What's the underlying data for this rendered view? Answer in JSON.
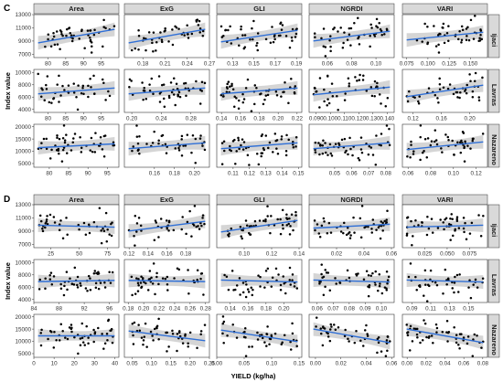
{
  "chart_data": [
    {
      "label": "C",
      "type": "scatter",
      "ylabel": "Index value",
      "xlabel": "",
      "cols": [
        {
          "name": "Area",
          "xlim_by_row": [
            [
              76,
              100
            ],
            [
              76,
              100
            ],
            [
              76,
              98
            ]
          ],
          "xticks_by_row": [
            [
              "80",
              "85",
              "90",
              "95"
            ],
            [
              "80",
              "85",
              "90",
              "95"
            ],
            [
              "80",
              "85",
              "90",
              "95"
            ]
          ]
        },
        {
          "name": "ExG",
          "xlim_by_row": [
            [
              0.155,
              0.27
            ],
            [
              0.19,
              0.305
            ],
            [
              0.13,
              0.215
            ]
          ],
          "xticks_by_row": [
            [
              "0.18",
              "0.21",
              "0.24",
              "0.27"
            ],
            [
              "0.20",
              "0.24",
              "0.28"
            ],
            [
              "0.16",
              "0.18",
              "0.20"
            ]
          ]
        },
        {
          "name": "GLI",
          "xlim_by_row": [
            [
              0.115,
              0.195
            ],
            [
              0.135,
              0.225
            ],
            [
              0.1,
              0.152
            ]
          ],
          "xticks_by_row": [
            [
              "0.13",
              "0.15",
              "0.17",
              "0.19"
            ],
            [
              "0.14",
              "0.16",
              "0.18",
              "0.20",
              "0.22"
            ],
            [
              "0.11",
              "0.12",
              "0.13",
              "0.14",
              "0.15"
            ]
          ]
        },
        {
          "name": "NGRDI",
          "xlim_by_row": [
            [
              0.045,
              0.115
            ],
            [
              0.085,
              0.145
            ],
            [
              0.035,
              0.085
            ]
          ],
          "xticks_by_row": [
            [
              "0.06",
              "0.08",
              "0.10"
            ],
            [
              "0.090",
              "0.100",
              "0.110",
              "0.120",
              "0.130",
              "0.140"
            ],
            [
              "0.05",
              "0.06",
              "0.07",
              "0.08"
            ]
          ]
        },
        {
          "name": "VARI",
          "xlim_by_row": [
            [
              0.07,
              0.17
            ],
            [
              0.105,
              0.225
            ],
            [
              0.055,
              0.13
            ]
          ],
          "xticks_by_row": [
            [
              "0.075",
              "0.100",
              "0.125",
              "0.150"
            ],
            [
              "0.12",
              "0.16",
              "0.20"
            ],
            [
              "0.06",
              "0.08",
              "0.10",
              "0.12"
            ]
          ]
        }
      ],
      "rows": [
        {
          "name": "Ijaci",
          "ylim": [
            6500,
            13000
          ],
          "yticks": [
            "7000",
            "9000",
            "11000",
            "13000"
          ]
        },
        {
          "name": "Lavras",
          "ylim": [
            3500,
            10500
          ],
          "yticks": [
            "4000",
            "6000",
            "8000",
            "10000"
          ]
        },
        {
          "name": "Nazareno",
          "ylim": [
            3500,
            21000
          ],
          "yticks": [
            "5000",
            "10000",
            "15000",
            "20000"
          ]
        }
      ]
    },
    {
      "label": "D",
      "type": "scatter",
      "ylabel": "Index value",
      "xlabel": "YIELD (kg/ha)",
      "cols": [
        {
          "name": "Area",
          "xlim_by_row": [
            [
              10,
              85
            ],
            [
              84,
              97.5
            ],
            [
              0,
              42
            ]
          ],
          "xticks_by_row": [
            [
              "25",
              "50",
              "75"
            ],
            [
              "84",
              "88",
              "92",
              "96"
            ],
            [
              "0",
              "10",
              "20",
              "30",
              "40"
            ]
          ]
        },
        {
          "name": "ExG",
          "xlim_by_row": [
            [
              0.115,
              0.205
            ],
            [
              0.175,
              0.285
            ],
            [
              0.03,
              0.25
            ]
          ],
          "xticks_by_row": [
            [
              "0.12",
              "0.14",
              "0.16",
              "0.18"
            ],
            [
              "0.18",
              "0.20",
              "0.22",
              "0.24",
              "0.26",
              "0.28"
            ],
            [
              "0.05",
              "0.10",
              "0.15",
              "0.20",
              "0.25"
            ]
          ]
        },
        {
          "name": "GLI",
          "xlim_by_row": [
            [
              0.08,
              0.142
            ],
            [
              0.125,
              0.22
            ],
            [
              0.0,
              0.155
            ]
          ],
          "xticks_by_row": [
            [
              "0.10",
              "0.12",
              "0.14"
            ],
            [
              "0.14",
              "0.16",
              "0.18",
              "0.20"
            ],
            [
              "0.00",
              "0.05",
              "0.10",
              "0.15"
            ]
          ]
        },
        {
          "name": "NGRDI",
          "xlim_by_row": [
            [
              0.0,
              0.062
            ],
            [
              0.055,
              0.108
            ],
            [
              -0.005,
              0.062
            ]
          ],
          "xticks_by_row": [
            [
              "0.02",
              "0.04",
              "0.06"
            ],
            [
              "0.06",
              "0.07",
              "0.08",
              "0.09",
              "0.10"
            ],
            [
              "0.00",
              "0.02",
              "0.04",
              "0.06"
            ]
          ]
        },
        {
          "name": "VARI",
          "xlim_by_row": [
            [
              0.0,
              0.095
            ],
            [
              0.08,
              0.17
            ],
            [
              -0.005,
              0.085
            ]
          ],
          "xticks_by_row": [
            [
              "0.025",
              "0.050",
              "0.075"
            ],
            [
              "0.09",
              "0.11",
              "0.13",
              "0.15"
            ],
            [
              "0.00",
              "0.02",
              "0.04",
              "0.06",
              "0.08"
            ]
          ]
        }
      ],
      "rows": [
        {
          "name": "Ijaci",
          "ylim": [
            6500,
            13000
          ],
          "yticks": [
            "7000",
            "9000",
            "11000",
            "13000"
          ]
        },
        {
          "name": "Lavras",
          "ylim": [
            3500,
            10500
          ],
          "yticks": [
            "4000",
            "6000",
            "8000",
            "10000"
          ]
        },
        {
          "name": "Nazareno",
          "ylim": [
            3500,
            21000
          ],
          "yticks": [
            "5000",
            "10000",
            "15000",
            "20000"
          ]
        }
      ]
    }
  ],
  "colors": {
    "fit_line": "#2f6fd6",
    "points": "#000000",
    "confidence_band": "#b3b3b3",
    "strip": "#d9d9d9"
  }
}
